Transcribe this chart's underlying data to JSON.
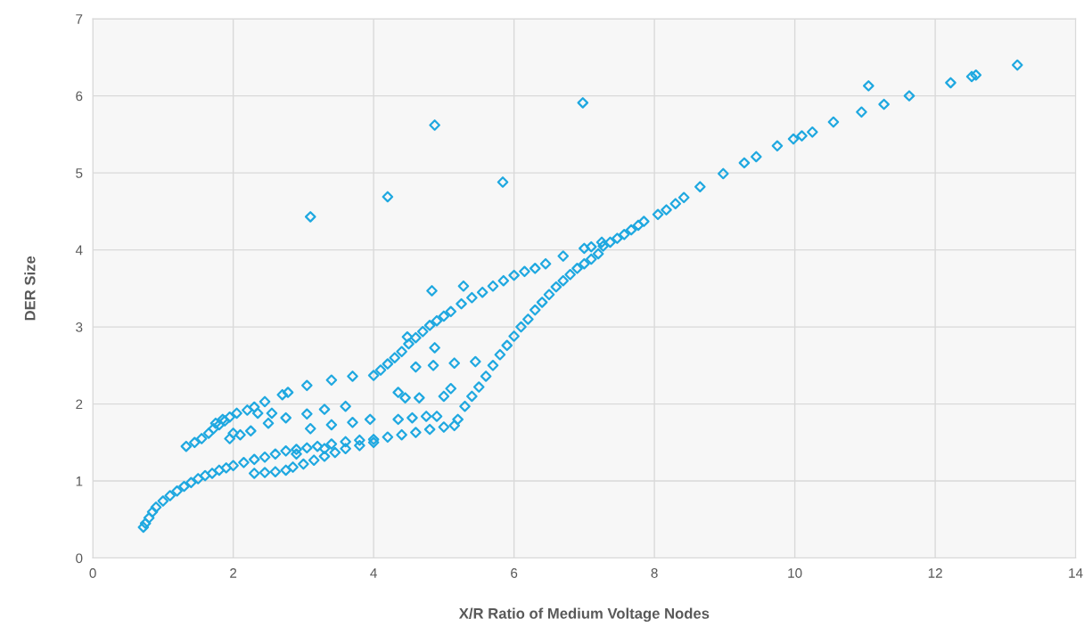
{
  "chart_data": {
    "type": "scatter",
    "xlabel": "X/R Ratio of Medium Voltage Nodes",
    "ylabel": "DER Size",
    "xlim": [
      0,
      14
    ],
    "xticks": [
      0,
      2,
      4,
      6,
      8,
      10,
      12,
      14
    ],
    "ylim": [
      0,
      7
    ],
    "yticks": [
      0,
      1,
      2,
      3,
      4,
      5,
      6,
      7
    ],
    "grid": true,
    "marker": "diamond",
    "series": [
      {
        "color": "#1fa8e0",
        "x": [
          13.17,
          12.58,
          12.52,
          12.22,
          11.63,
          11.27,
          11.05,
          10.95,
          10.55,
          10.25,
          10.1,
          9.98,
          9.75,
          9.45,
          9.28,
          8.98,
          8.65,
          8.42,
          8.3,
          8.17,
          8.05,
          7.85,
          7.77,
          7.67,
          7.57,
          7.47,
          7.37,
          7.27,
          7.25,
          7.1,
          7.0,
          6.7,
          3.1,
          4.2,
          4.87,
          5.84,
          6.98,
          5.2,
          5.3,
          5.4,
          5.5,
          5.6,
          5.7,
          5.8,
          5.9,
          6.0,
          6.1,
          6.2,
          6.3,
          6.4,
          6.5,
          6.6,
          6.7,
          6.8,
          6.9,
          7.0,
          7.1,
          7.2,
          4.0,
          4.1,
          4.2,
          4.3,
          4.4,
          4.5,
          4.6,
          4.7,
          4.8,
          4.9,
          5.0,
          5.1,
          5.25,
          5.4,
          5.55,
          5.7,
          5.85,
          6.0,
          6.15,
          6.3,
          6.45,
          4.83,
          5.28,
          4.48,
          0.72,
          0.75,
          0.8,
          0.85,
          0.9,
          1.0,
          1.1,
          1.2,
          1.3,
          1.4,
          1.5,
          1.6,
          1.7,
          1.8,
          1.9,
          2.0,
          2.15,
          2.3,
          2.45,
          2.6,
          2.75,
          2.9,
          3.05,
          3.2,
          3.4,
          3.6,
          3.8,
          4.0,
          4.2,
          4.4,
          4.6,
          4.8,
          5.0,
          5.15,
          2.3,
          2.45,
          2.6,
          2.75,
          2.85,
          3.0,
          3.15,
          3.3,
          3.45,
          3.6,
          3.8,
          4.0,
          1.33,
          1.45,
          1.55,
          1.65,
          1.72,
          1.8,
          1.88,
          1.95,
          2.05,
          2.2,
          2.3,
          2.45,
          2.7,
          2.78,
          3.05,
          3.4,
          3.7,
          3.05,
          3.3,
          3.6,
          2.0,
          1.95,
          2.1,
          2.25,
          2.5,
          2.75,
          3.1,
          3.4,
          3.7,
          3.95,
          2.9,
          3.3,
          4.35,
          4.45,
          4.6,
          4.85,
          4.87,
          5.0,
          5.1,
          5.15,
          5.45,
          4.65,
          4.35,
          4.55,
          4.75,
          4.9,
          1.75,
          1.85,
          2.55,
          2.35
        ],
        "values": [
          6.4,
          6.27,
          6.25,
          6.17,
          6.0,
          5.89,
          6.13,
          5.79,
          5.66,
          5.53,
          5.48,
          5.44,
          5.35,
          5.21,
          5.13,
          4.99,
          4.82,
          4.68,
          4.6,
          4.52,
          4.46,
          4.37,
          4.32,
          4.26,
          4.2,
          4.15,
          4.1,
          4.05,
          4.1,
          4.04,
          4.02,
          3.92,
          4.43,
          4.69,
          5.62,
          4.88,
          5.91,
          1.8,
          1.97,
          2.1,
          2.22,
          2.36,
          2.5,
          2.64,
          2.76,
          2.88,
          3.0,
          3.1,
          3.22,
          3.32,
          3.42,
          3.52,
          3.6,
          3.68,
          3.76,
          3.82,
          3.88,
          3.95,
          2.37,
          2.44,
          2.52,
          2.6,
          2.68,
          2.78,
          2.86,
          2.94,
          3.02,
          3.08,
          3.14,
          3.2,
          3.3,
          3.38,
          3.45,
          3.53,
          3.6,
          3.67,
          3.72,
          3.76,
          3.82,
          3.47,
          3.53,
          2.87,
          0.4,
          0.45,
          0.52,
          0.6,
          0.66,
          0.74,
          0.81,
          0.87,
          0.93,
          0.98,
          1.03,
          1.07,
          1.1,
          1.14,
          1.17,
          1.2,
          1.24,
          1.28,
          1.31,
          1.35,
          1.39,
          1.41,
          1.43,
          1.45,
          1.48,
          1.51,
          1.53,
          1.54,
          1.57,
          1.6,
          1.63,
          1.67,
          1.7,
          1.72,
          1.1,
          1.11,
          1.12,
          1.14,
          1.18,
          1.22,
          1.27,
          1.32,
          1.37,
          1.42,
          1.46,
          1.5,
          1.45,
          1.5,
          1.55,
          1.62,
          1.68,
          1.73,
          1.78,
          1.83,
          1.88,
          1.92,
          1.96,
          2.03,
          2.12,
          2.15,
          2.24,
          2.31,
          2.36,
          1.87,
          1.93,
          1.97,
          1.62,
          1.55,
          1.6,
          1.65,
          1.75,
          1.82,
          1.68,
          1.73,
          1.76,
          1.8,
          1.35,
          1.42,
          2.15,
          2.08,
          2.48,
          2.5,
          2.73,
          2.1,
          2.2,
          2.53,
          2.55,
          2.08,
          1.8,
          1.82,
          1.84,
          1.84,
          1.75,
          1.8,
          1.88,
          1.88
        ]
      }
    ]
  }
}
